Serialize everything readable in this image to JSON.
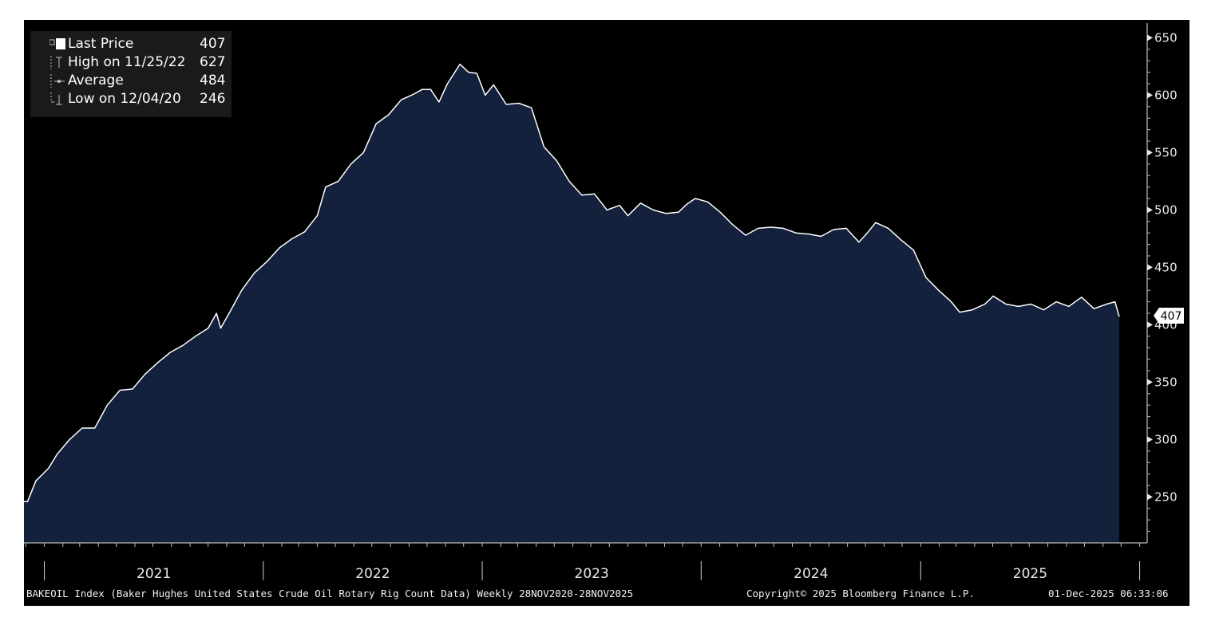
{
  "legend": {
    "items": [
      {
        "label": "Last Price",
        "value": "407",
        "icon": "square-swatch-icon"
      },
      {
        "label": "High on 11/25/22",
        "value": "627",
        "icon": "high-marker-icon"
      },
      {
        "label": "Average",
        "value": "484",
        "icon": "average-marker-icon"
      },
      {
        "label": "Low on 12/04/20",
        "value": "246",
        "icon": "low-marker-icon"
      }
    ]
  },
  "last_price_badge": "407",
  "footer": {
    "description": "BAKEOIL Index (Baker Hughes United States Crude Oil Rotary Rig Count Data) Weekly 28NOV2020-28NOV2025",
    "copyright": "Copyright© 2025 Bloomberg Finance L.P.",
    "timestamp": "01-Dec-2025 06:33:06"
  },
  "colors": {
    "background": "#000000",
    "area_fill": "#13213d",
    "line": "#ffffff",
    "legend_bg": "#1a1a1a"
  },
  "chart_data": {
    "type": "area",
    "title": "",
    "xlabel": "",
    "ylabel": "",
    "x_range": [
      "2020-11-28",
      "2025-11-28"
    ],
    "x_tick_labels": [
      "2021",
      "2022",
      "2023",
      "2024",
      "2025"
    ],
    "ylim": [
      210,
      660
    ],
    "y_ticks": [
      250,
      300,
      350,
      400,
      450,
      500,
      550,
      600,
      650
    ],
    "legend_position": "top-left",
    "grid": false,
    "series": [
      {
        "name": "Last Price",
        "points": [
          [
            "2020-11-28",
            246
          ],
          [
            "2020-12-04",
            246
          ],
          [
            "2020-12-18",
            264
          ],
          [
            "2021-01-08",
            275
          ],
          [
            "2021-01-22",
            287
          ],
          [
            "2021-02-12",
            300
          ],
          [
            "2021-03-05",
            310
          ],
          [
            "2021-03-26",
            310
          ],
          [
            "2021-04-16",
            330
          ],
          [
            "2021-05-07",
            343
          ],
          [
            "2021-05-28",
            344
          ],
          [
            "2021-06-18",
            357
          ],
          [
            "2021-07-09",
            367
          ],
          [
            "2021-07-30",
            376
          ],
          [
            "2021-08-20",
            382
          ],
          [
            "2021-09-10",
            390
          ],
          [
            "2021-10-01",
            397
          ],
          [
            "2021-10-15",
            410
          ],
          [
            "2021-10-22",
            397
          ],
          [
            "2021-11-05",
            410
          ],
          [
            "2021-11-26",
            430
          ],
          [
            "2021-12-17",
            445
          ],
          [
            "2022-01-07",
            455
          ],
          [
            "2022-01-28",
            467
          ],
          [
            "2022-02-18",
            475
          ],
          [
            "2022-03-11",
            481
          ],
          [
            "2022-04-01",
            495
          ],
          [
            "2022-04-15",
            520
          ],
          [
            "2022-05-06",
            525
          ],
          [
            "2022-05-27",
            540
          ],
          [
            "2022-06-17",
            550
          ],
          [
            "2022-07-08",
            575
          ],
          [
            "2022-07-29",
            583
          ],
          [
            "2022-08-19",
            596
          ],
          [
            "2022-09-09",
            601
          ],
          [
            "2022-09-23",
            605
          ],
          [
            "2022-10-07",
            605
          ],
          [
            "2022-10-21",
            594
          ],
          [
            "2022-11-04",
            610
          ],
          [
            "2022-11-25",
            627
          ],
          [
            "2022-12-09",
            620
          ],
          [
            "2022-12-23",
            619
          ],
          [
            "2023-01-06",
            600
          ],
          [
            "2023-01-20",
            609
          ],
          [
            "2023-02-10",
            592
          ],
          [
            "2023-03-03",
            593
          ],
          [
            "2023-03-24",
            589
          ],
          [
            "2023-04-14",
            555
          ],
          [
            "2023-05-05",
            543
          ],
          [
            "2023-05-26",
            525
          ],
          [
            "2023-06-16",
            513
          ],
          [
            "2023-07-07",
            514
          ],
          [
            "2023-07-28",
            500
          ],
          [
            "2023-08-18",
            504
          ],
          [
            "2023-09-01",
            495
          ],
          [
            "2023-09-22",
            506
          ],
          [
            "2023-10-13",
            500
          ],
          [
            "2023-11-03",
            497
          ],
          [
            "2023-11-24",
            498
          ],
          [
            "2023-12-08",
            505
          ],
          [
            "2023-12-22",
            510
          ],
          [
            "2024-01-12",
            507
          ],
          [
            "2024-02-02",
            498
          ],
          [
            "2024-02-23",
            487
          ],
          [
            "2024-03-15",
            478
          ],
          [
            "2024-04-05",
            484
          ],
          [
            "2024-04-26",
            485
          ],
          [
            "2024-05-17",
            484
          ],
          [
            "2024-06-07",
            480
          ],
          [
            "2024-06-28",
            479
          ],
          [
            "2024-07-19",
            477
          ],
          [
            "2024-08-09",
            483
          ],
          [
            "2024-08-30",
            484
          ],
          [
            "2024-09-20",
            472
          ],
          [
            "2024-10-04",
            480
          ],
          [
            "2024-10-18",
            489
          ],
          [
            "2024-11-08",
            484
          ],
          [
            "2024-11-29",
            474
          ],
          [
            "2024-12-20",
            465
          ],
          [
            "2025-01-10",
            441
          ],
          [
            "2025-01-31",
            430
          ],
          [
            "2025-02-21",
            420
          ],
          [
            "2025-03-07",
            411
          ],
          [
            "2025-03-28",
            413
          ],
          [
            "2025-04-18",
            418
          ],
          [
            "2025-05-02",
            425
          ],
          [
            "2025-05-23",
            418
          ],
          [
            "2025-06-13",
            416
          ],
          [
            "2025-07-04",
            418
          ],
          [
            "2025-07-25",
            413
          ],
          [
            "2025-08-15",
            420
          ],
          [
            "2025-09-05",
            416
          ],
          [
            "2025-09-26",
            424
          ],
          [
            "2025-10-17",
            414
          ],
          [
            "2025-11-07",
            418
          ],
          [
            "2025-11-21",
            420
          ],
          [
            "2025-11-28",
            407
          ]
        ]
      }
    ],
    "annotations": [
      {
        "type": "last-value-label",
        "value": 407
      }
    ]
  }
}
